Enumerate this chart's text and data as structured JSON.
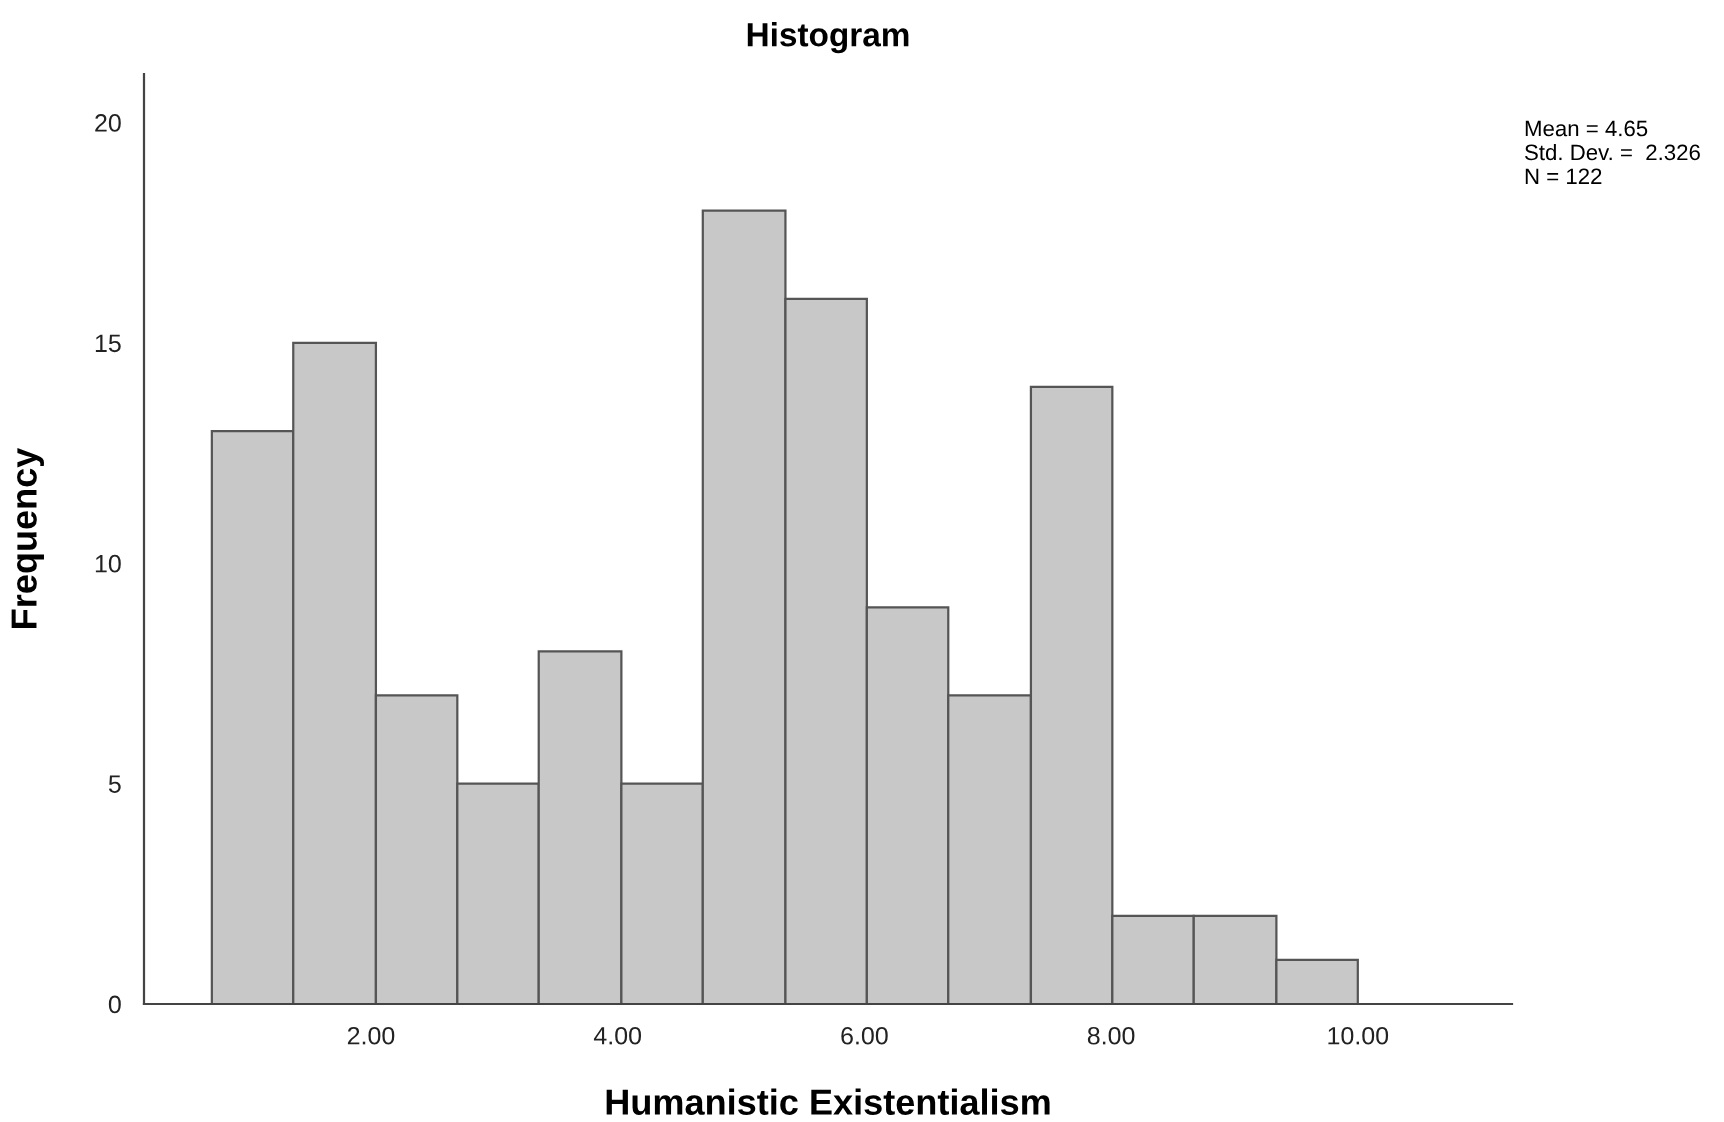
{
  "chart_data": {
    "type": "histogram",
    "title": "Histogram",
    "xlabel": "Humanistic Existentialism",
    "ylabel": "Frequency",
    "bins": [
      0.71,
      1.37,
      2.04,
      2.7,
      3.36,
      4.03,
      4.69,
      5.36,
      6.02,
      6.68,
      7.35,
      8.01,
      8.67,
      9.34,
      10.0
    ],
    "values": [
      13,
      15,
      7,
      5,
      8,
      5,
      18,
      16,
      9,
      7,
      14,
      2,
      2,
      1
    ],
    "color": "#c8c8c8",
    "xlim": [
      0.16,
      11.25
    ],
    "xticks": [
      {
        "value": 2,
        "label": "2.00"
      },
      {
        "value": 4,
        "label": "4.00"
      },
      {
        "value": 6,
        "label": "6.00"
      },
      {
        "value": 8,
        "label": "8.00"
      },
      {
        "value": 10,
        "label": "10.00"
      }
    ],
    "ylim": [
      0,
      21.1
    ],
    "yticks": [
      0,
      5,
      10,
      15,
      20
    ],
    "grid": false,
    "legend": false,
    "annotations": [
      "Mean = 4.65\nStd. Dev. =  2.326\nN = 122"
    ]
  }
}
